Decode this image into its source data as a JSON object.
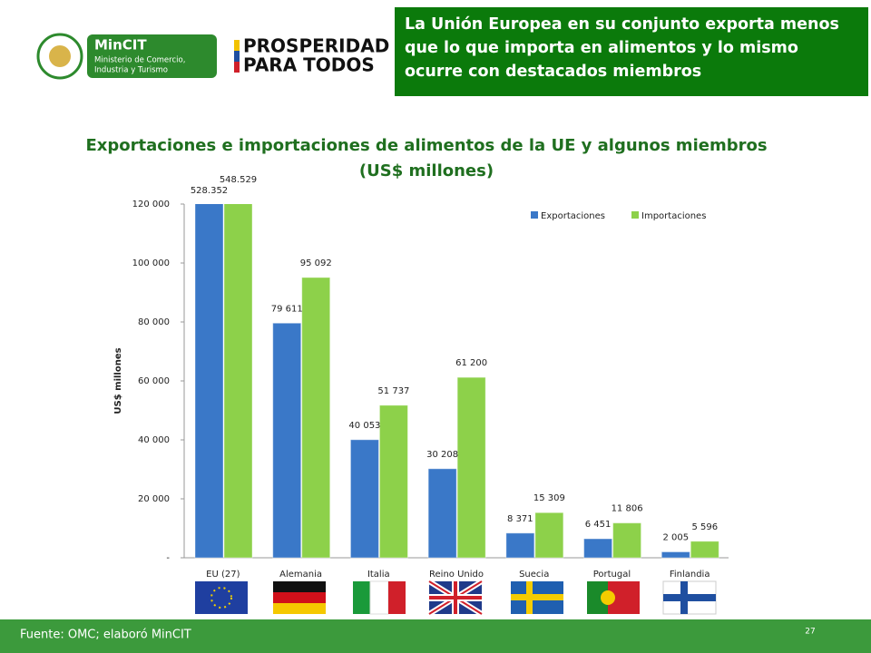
{
  "header": {
    "text": "La Unión Europea en su conjunto exporta menos que lo que importa en alimentos y lo mismo ocurre con destacados miembros"
  },
  "logos": {
    "ministry_name": "MinCIT",
    "ministry_lines": [
      "Ministerio de Comercio,",
      "Industria y Turismo"
    ],
    "campaign_lines": [
      "PROSPERIDAD",
      "PARA TODOS"
    ]
  },
  "footer": {
    "source": "Fuente: OMC; elaboró MinCIT",
    "page": "27"
  },
  "chart_data": {
    "type": "bar",
    "title": "Exportaciones e importaciones de alimentos de la UE y algunos miembros",
    "subtitle": "(US$ millones)",
    "y_label": "US$ millones",
    "categories": [
      "EU (27)",
      "Alemania",
      "Italia",
      "Reino Unido",
      "Suecia",
      "Portugal",
      "Finlandia"
    ],
    "series": [
      {
        "name": "Exportaciones",
        "color": "#3a78c8",
        "values": [
          528352,
          79611,
          40053,
          30208,
          8371,
          6451,
          2005
        ],
        "value_labels": [
          "528.352",
          "79 611",
          "40 053",
          "30 208",
          "8 371",
          "6 451",
          "2 005"
        ]
      },
      {
        "name": "Importaciones",
        "color": "#8dd14a",
        "values": [
          548529,
          95092,
          51737,
          61200,
          15309,
          11806,
          5596
        ],
        "value_labels": [
          "548.529",
          "95 092",
          "51 737",
          "61 200",
          "15 309",
          "11 806",
          "5 596"
        ]
      }
    ],
    "ylim": [
      0,
      120000
    ],
    "yticks": [
      {
        "value": 0,
        "label": "-"
      },
      {
        "value": 20000,
        "label": "20 000"
      },
      {
        "value": 40000,
        "label": "40 000"
      },
      {
        "value": 60000,
        "label": "60 000"
      },
      {
        "value": 80000,
        "label": "80 000"
      },
      {
        "value": 100000,
        "label": "100 000"
      },
      {
        "value": 120000,
        "label": "120 000"
      }
    ],
    "grid": false,
    "legend": "top-right"
  }
}
